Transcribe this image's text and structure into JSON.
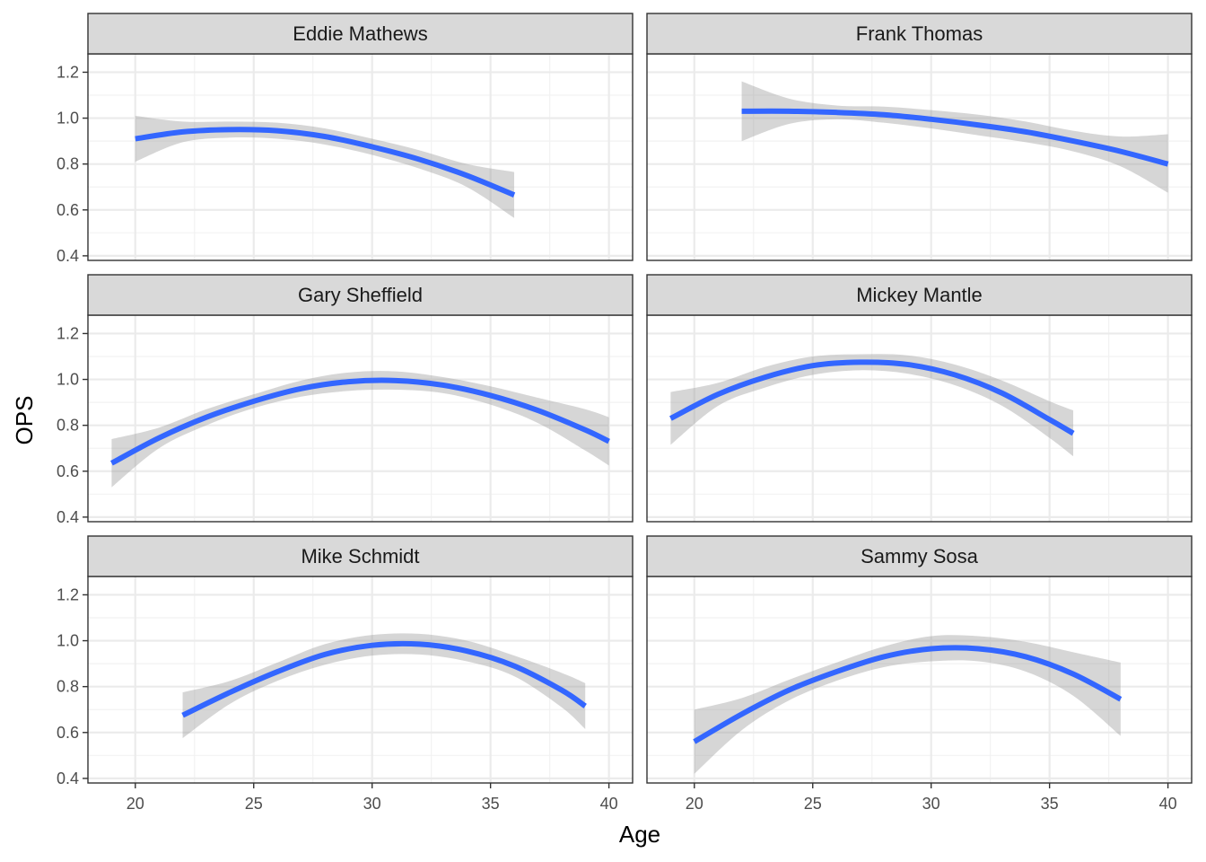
{
  "chart_data": {
    "type": "line",
    "xlabel": "Age",
    "ylabel": "OPS",
    "xlim": [
      18,
      41
    ],
    "ylim": [
      0.38,
      1.28
    ],
    "x_ticks": [
      20,
      25,
      30,
      35,
      40
    ],
    "y_ticks": [
      0.4,
      0.6,
      0.8,
      1.0,
      1.2
    ],
    "x_tick_labels": [
      "20",
      "25",
      "30",
      "35",
      "40"
    ],
    "y_tick_labels": [
      "0.4",
      "0.6",
      "0.8",
      "1.0",
      "1.2"
    ],
    "grid": true,
    "line_color": "#3366ff",
    "band_color": "#999999",
    "strip_fill": "#d9d9d9",
    "panels": [
      {
        "name": "Eddie Mathews",
        "x": [
          20,
          22,
          24,
          26,
          28,
          30,
          32,
          34,
          36
        ],
        "y": [
          0.91,
          0.94,
          0.95,
          0.945,
          0.92,
          0.875,
          0.82,
          0.75,
          0.665
        ],
        "lower": [
          0.81,
          0.895,
          0.915,
          0.91,
          0.885,
          0.84,
          0.78,
          0.7,
          0.565
        ],
        "upper": [
          1.01,
          0.985,
          0.985,
          0.98,
          0.955,
          0.91,
          0.86,
          0.8,
          0.765
        ]
      },
      {
        "name": "Frank Thomas",
        "x": [
          22,
          24,
          26,
          28,
          30,
          32,
          34,
          36,
          38,
          40
        ],
        "y": [
          1.03,
          1.03,
          1.025,
          1.015,
          0.995,
          0.97,
          0.94,
          0.9,
          0.855,
          0.8
        ],
        "lower": [
          0.9,
          0.975,
          0.995,
          0.98,
          0.955,
          0.925,
          0.895,
          0.855,
          0.79,
          0.675
        ],
        "upper": [
          1.16,
          1.085,
          1.055,
          1.05,
          1.035,
          1.015,
          0.985,
          0.945,
          0.92,
          0.93
        ]
      },
      {
        "name": "Gary Sheffield",
        "x": [
          19,
          21,
          23,
          25,
          27,
          29,
          31,
          33,
          35,
          37,
          39,
          40
        ],
        "y": [
          0.635,
          0.745,
          0.835,
          0.905,
          0.96,
          0.99,
          0.995,
          0.975,
          0.93,
          0.865,
          0.78,
          0.73
        ],
        "lower": [
          0.53,
          0.7,
          0.8,
          0.875,
          0.925,
          0.95,
          0.955,
          0.94,
          0.89,
          0.81,
          0.69,
          0.625
        ],
        "upper": [
          0.74,
          0.79,
          0.87,
          0.935,
          0.995,
          1.03,
          1.035,
          1.01,
          0.97,
          0.92,
          0.87,
          0.835
        ]
      },
      {
        "name": "Mickey Mantle",
        "x": [
          19,
          21,
          23,
          25,
          27,
          29,
          31,
          33,
          35,
          36
        ],
        "y": [
          0.83,
          0.935,
          1.01,
          1.06,
          1.075,
          1.065,
          1.02,
          0.94,
          0.825,
          0.765
        ],
        "lower": [
          0.715,
          0.885,
          0.965,
          1.02,
          1.04,
          1.025,
          0.975,
          0.885,
          0.745,
          0.665
        ],
        "upper": [
          0.945,
          0.985,
          1.055,
          1.1,
          1.11,
          1.105,
          1.065,
          0.995,
          0.905,
          0.865
        ]
      },
      {
        "name": "Mike Schmidt",
        "x": [
          22,
          24,
          26,
          28,
          30,
          32,
          34,
          36,
          38,
          39
        ],
        "y": [
          0.675,
          0.775,
          0.865,
          0.94,
          0.98,
          0.985,
          0.955,
          0.89,
          0.785,
          0.715
        ],
        "lower": [
          0.575,
          0.725,
          0.825,
          0.895,
          0.935,
          0.94,
          0.91,
          0.845,
          0.71,
          0.615
        ],
        "upper": [
          0.775,
          0.825,
          0.905,
          0.985,
          1.025,
          1.03,
          1.0,
          0.935,
          0.86,
          0.815
        ]
      },
      {
        "name": "Sammy Sosa",
        "x": [
          20,
          22,
          24,
          26,
          28,
          30,
          32,
          34,
          36,
          38
        ],
        "y": [
          0.56,
          0.68,
          0.785,
          0.865,
          0.93,
          0.965,
          0.965,
          0.93,
          0.855,
          0.745
        ],
        "lower": [
          0.42,
          0.61,
          0.74,
          0.825,
          0.885,
          0.91,
          0.91,
          0.865,
          0.76,
          0.585
        ],
        "upper": [
          0.7,
          0.75,
          0.83,
          0.905,
          0.975,
          1.02,
          1.02,
          0.995,
          0.95,
          0.905
        ]
      }
    ]
  }
}
